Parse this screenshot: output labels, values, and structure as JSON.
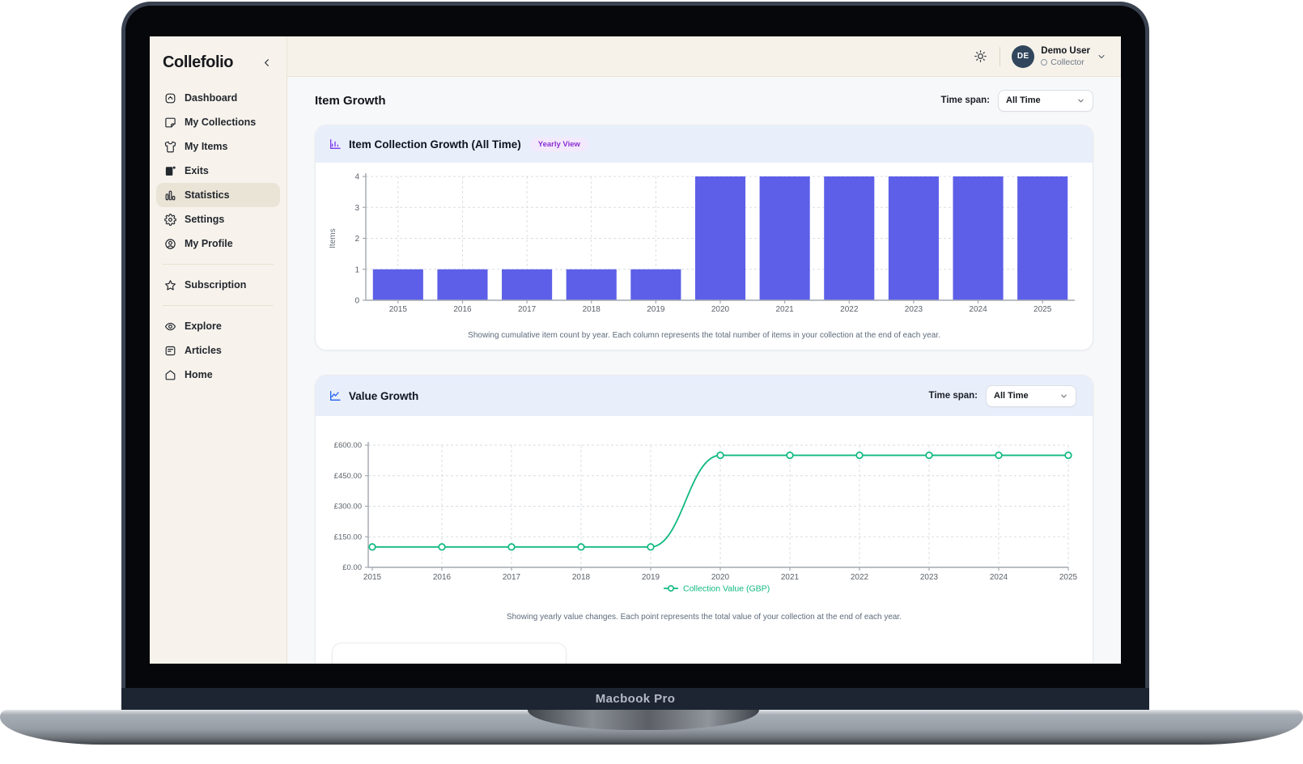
{
  "laptop": {
    "label": "Macbook Pro"
  },
  "sidebar": {
    "logo": "Collefolio",
    "groups": [
      {
        "items": [
          {
            "id": "dashboard",
            "label": "Dashboard"
          },
          {
            "id": "collections",
            "label": "My Collections"
          },
          {
            "id": "items",
            "label": "My Items"
          },
          {
            "id": "exits",
            "label": "Exits"
          },
          {
            "id": "statistics",
            "label": "Statistics",
            "active": true
          },
          {
            "id": "settings",
            "label": "Settings"
          },
          {
            "id": "profile",
            "label": "My Profile"
          }
        ]
      },
      {
        "items": [
          {
            "id": "subscription",
            "label": "Subscription"
          }
        ]
      },
      {
        "items": [
          {
            "id": "explore",
            "label": "Explore"
          },
          {
            "id": "articles",
            "label": "Articles"
          },
          {
            "id": "home",
            "label": "Home"
          }
        ]
      }
    ]
  },
  "header": {
    "user_initials": "DE",
    "user_name": "Demo User",
    "user_role": "Collector"
  },
  "page": {
    "title": "Item Growth",
    "time_span_label": "Time span:",
    "time_span_value": "All Time"
  },
  "cards": {
    "item_growth": {
      "title": "Item Collection Growth (All Time)",
      "badge": "Yearly View",
      "caption": "Showing cumulative item count by year. Each column represents the total number of items in your collection at the end of each year."
    },
    "value_growth": {
      "title": "Value Growth",
      "time_span_label": "Time span:",
      "time_span_value": "All Time",
      "legend": "Collection Value (GBP)",
      "caption": "Showing yearly value changes. Each point represents the total value of your collection at the end of each year."
    }
  },
  "colors": {
    "bar": "#5d5fe8",
    "line": "#10b981",
    "grid": "#d9dde2",
    "axis": "#a3a9b0",
    "tick_text": "#5b6168",
    "card_header_bg": "#e9eefb",
    "badge_text": "#8b2fd1",
    "sidebar_bg": "#f7f3ec",
    "avatar_bg": "#31465c"
  },
  "chart_data": [
    {
      "type": "bar",
      "title": "Item Collection Growth (All Time)",
      "categories": [
        "2015",
        "2016",
        "2017",
        "2018",
        "2019",
        "2020",
        "2021",
        "2022",
        "2023",
        "2024",
        "2025"
      ],
      "values": [
        1,
        1,
        1,
        1,
        1,
        4,
        4,
        4,
        4,
        4,
        4
      ],
      "xlabel": "",
      "ylabel": "Items",
      "ylim": [
        0,
        4
      ],
      "yticks": [
        0,
        1,
        2,
        3,
        4
      ],
      "grid": true,
      "legend_position": "none",
      "bar_color": "#5d5fe8"
    },
    {
      "type": "line",
      "title": "Value Growth",
      "categories": [
        "2015",
        "2016",
        "2017",
        "2018",
        "2019",
        "2020",
        "2021",
        "2022",
        "2023",
        "2024",
        "2025"
      ],
      "series": [
        {
          "name": "Collection Value (GBP)",
          "values": [
            100,
            100,
            100,
            100,
            100,
            550,
            550,
            550,
            550,
            550,
            550
          ]
        }
      ],
      "xlabel": "",
      "ylabel": "",
      "ylim": [
        0,
        600
      ],
      "yticks": [
        0,
        150,
        300,
        450,
        600
      ],
      "ytick_labels": [
        "£0.00",
        "£150.00",
        "£300.00",
        "£450.00",
        "£600.00"
      ],
      "grid": true,
      "legend_position": "bottom",
      "line_color": "#10b981",
      "marker": "open-circle"
    }
  ]
}
